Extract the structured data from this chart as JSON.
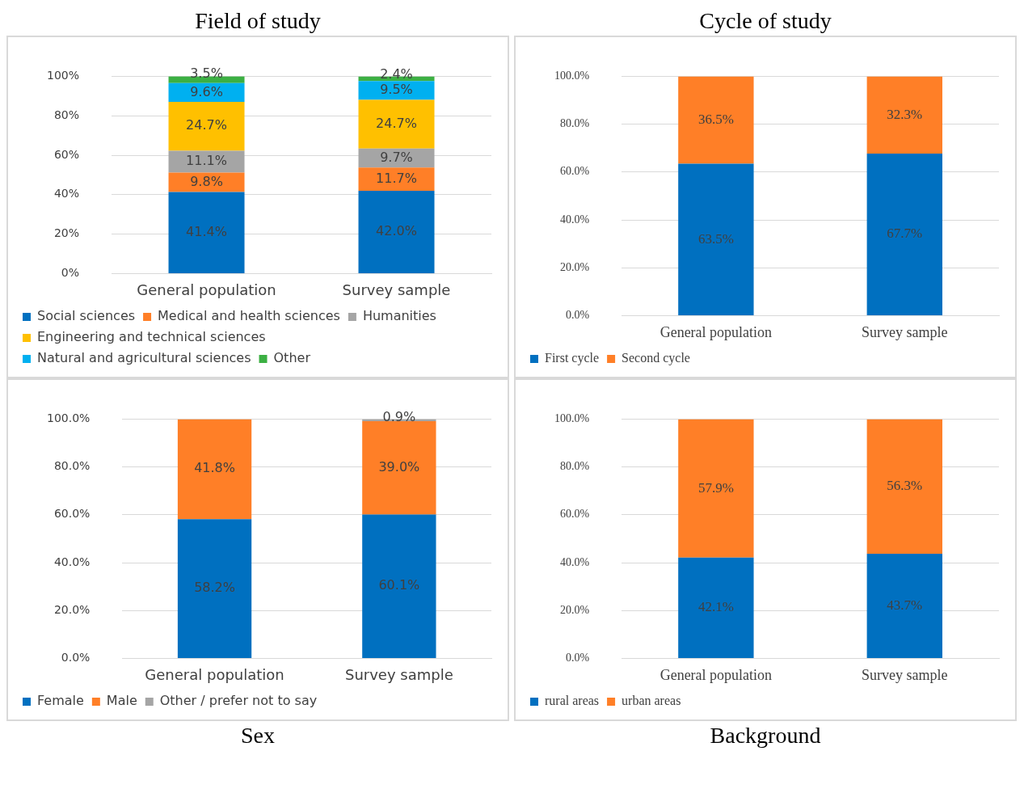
{
  "chart_data": [
    {
      "type": "bar",
      "title": "Field of study",
      "stacked": true,
      "categories": [
        "General population",
        "Survey sample"
      ],
      "series": [
        {
          "name": "Social sciences",
          "color": "#0070c0",
          "values": [
            41.4,
            42.0
          ],
          "value_labels": [
            "41.4%",
            "42.0%"
          ]
        },
        {
          "name": "Medical and health sciences",
          "color": "#ff7f27",
          "values": [
            9.8,
            11.7
          ],
          "value_labels": [
            "9.8%",
            "11.7%"
          ]
        },
        {
          "name": "Humanities",
          "color": "#a5a5a5",
          "values": [
            11.1,
            9.7
          ],
          "value_labels": [
            "11.1%",
            "9.7%"
          ]
        },
        {
          "name": "Engineering and technical sciences",
          "color": "#ffc000",
          "values": [
            24.7,
            24.7
          ],
          "value_labels": [
            "24.7%",
            "24.7%"
          ]
        },
        {
          "name": "Natural and agricultural sciences",
          "color": "#00b0f0",
          "values": [
            9.6,
            9.5
          ],
          "value_labels": [
            "9.6%",
            "9.5%"
          ]
        },
        {
          "name": "Other",
          "color": "#3cb043",
          "values": [
            3.5,
            2.4
          ],
          "value_labels": [
            "3.5%",
            "2.4%"
          ]
        }
      ],
      "ylim": [
        0,
        100
      ],
      "yticks": [
        {
          "value": 0,
          "label": "0%"
        },
        {
          "value": 20,
          "label": "20%"
        },
        {
          "value": 40,
          "label": "40%"
        },
        {
          "value": 60,
          "label": "60%"
        },
        {
          "value": 80,
          "label": "80%"
        },
        {
          "value": 100,
          "label": "100%"
        }
      ],
      "grid": "y",
      "legend": "bottom"
    },
    {
      "type": "bar",
      "title": "Cycle of study",
      "stacked": true,
      "categories": [
        "General population",
        "Survey sample"
      ],
      "series": [
        {
          "name": "First cycle",
          "color": "#0070c0",
          "values": [
            63.5,
            67.7
          ],
          "value_labels": [
            "63.5%",
            "67.7%"
          ]
        },
        {
          "name": "Second cycle",
          "color": "#ff7f27",
          "values": [
            36.5,
            32.3
          ],
          "value_labels": [
            "36.5%",
            "32.3%"
          ]
        }
      ],
      "ylim": [
        0,
        100
      ],
      "yticks": [
        {
          "value": 0,
          "label": "0.0%"
        },
        {
          "value": 20,
          "label": "20.0%"
        },
        {
          "value": 40,
          "label": "40.0%"
        },
        {
          "value": 60,
          "label": "60.0%"
        },
        {
          "value": 80,
          "label": "80.0%"
        },
        {
          "value": 100,
          "label": "100.0%"
        }
      ],
      "grid": "y",
      "legend": "bottom"
    },
    {
      "type": "bar",
      "title": "Sex",
      "stacked": true,
      "categories": [
        "General population",
        "Survey sample"
      ],
      "series": [
        {
          "name": "Female",
          "color": "#0070c0",
          "values": [
            58.2,
            60.1
          ],
          "value_labels": [
            "58.2%",
            "60.1%"
          ]
        },
        {
          "name": "Male",
          "color": "#ff7f27",
          "values": [
            41.8,
            39.0
          ],
          "value_labels": [
            "41.8%",
            "39.0%"
          ]
        },
        {
          "name": "Other / prefer not to say",
          "color": "#a5a5a5",
          "values": [
            null,
            0.9
          ],
          "value_labels": [
            null,
            "0.9%"
          ]
        }
      ],
      "ylim": [
        0,
        100
      ],
      "yticks": [
        {
          "value": 0,
          "label": "0.0%"
        },
        {
          "value": 20,
          "label": "20.0%"
        },
        {
          "value": 40,
          "label": "40.0%"
        },
        {
          "value": 60,
          "label": "60.0%"
        },
        {
          "value": 80,
          "label": "80.0%"
        },
        {
          "value": 100,
          "label": "100.0%"
        }
      ],
      "grid": "y",
      "legend": "bottom"
    },
    {
      "type": "bar",
      "title": "Background",
      "stacked": true,
      "categories": [
        "General population",
        "Survey sample"
      ],
      "series": [
        {
          "name": "rural areas",
          "color": "#0070c0",
          "values": [
            42.1,
            43.7
          ],
          "value_labels": [
            "42.1%",
            "43.7%"
          ]
        },
        {
          "name": "urban areas",
          "color": "#ff7f27",
          "values": [
            57.9,
            56.3
          ],
          "value_labels": [
            "57.9%",
            "56.3%"
          ]
        }
      ],
      "ylim": [
        0,
        100
      ],
      "yticks": [
        {
          "value": 0,
          "label": "0.0%"
        },
        {
          "value": 20,
          "label": "20.0%"
        },
        {
          "value": 40,
          "label": "40.0%"
        },
        {
          "value": 60,
          "label": "60.0%"
        },
        {
          "value": 80,
          "label": "80.0%"
        },
        {
          "value": 100,
          "label": "100.0%"
        }
      ],
      "grid": "y",
      "legend": "bottom"
    }
  ]
}
